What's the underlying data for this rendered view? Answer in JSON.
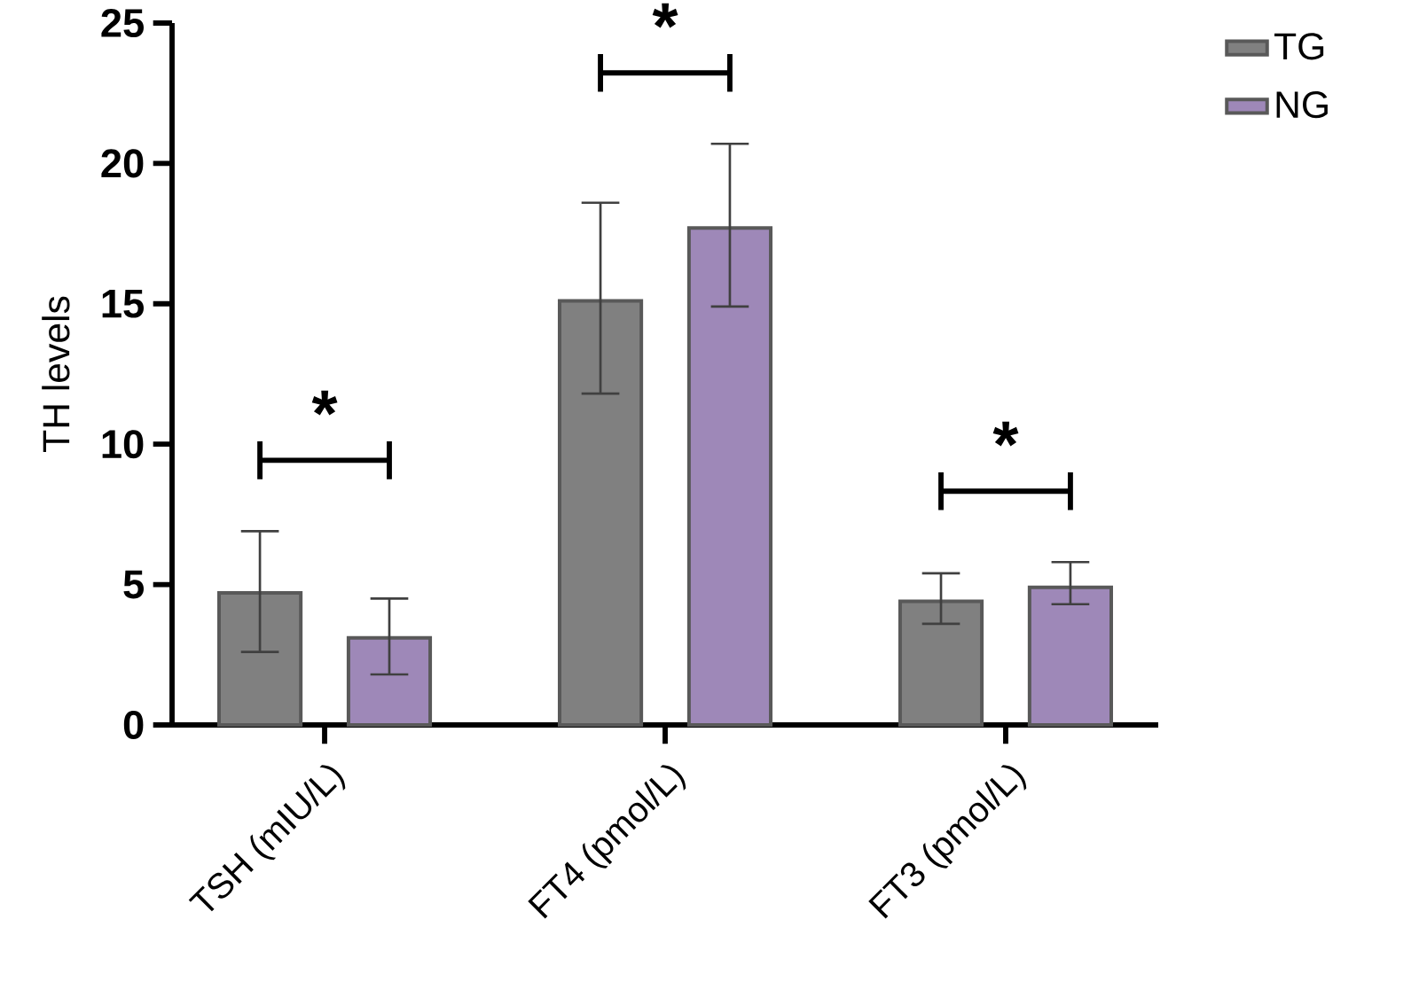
{
  "chart_data": {
    "type": "bar",
    "ylabel": "TH levels",
    "categories": [
      "TSH (mIU/L)",
      "FT4 (pmol/L)",
      "FT3 (pmol/L)"
    ],
    "series": [
      {
        "name": "TG",
        "color": "#808080",
        "values": [
          4.7,
          15.1,
          4.4
        ],
        "errors": [
          [
            2.6,
            6.9
          ],
          [
            11.8,
            18.6
          ],
          [
            3.6,
            5.4
          ]
        ]
      },
      {
        "name": "NG",
        "color": "#9e88b8",
        "values": [
          3.1,
          17.7,
          4.9
        ],
        "errors": [
          [
            1.8,
            4.5
          ],
          [
            14.9,
            20.7
          ],
          [
            4.3,
            5.8
          ]
        ]
      }
    ],
    "ylim": [
      0,
      25
    ],
    "yticks": [
      0,
      5,
      10,
      15,
      20,
      25
    ],
    "grid": false,
    "legend": "top right",
    "annotations": [
      "*",
      "*",
      "*"
    ]
  }
}
